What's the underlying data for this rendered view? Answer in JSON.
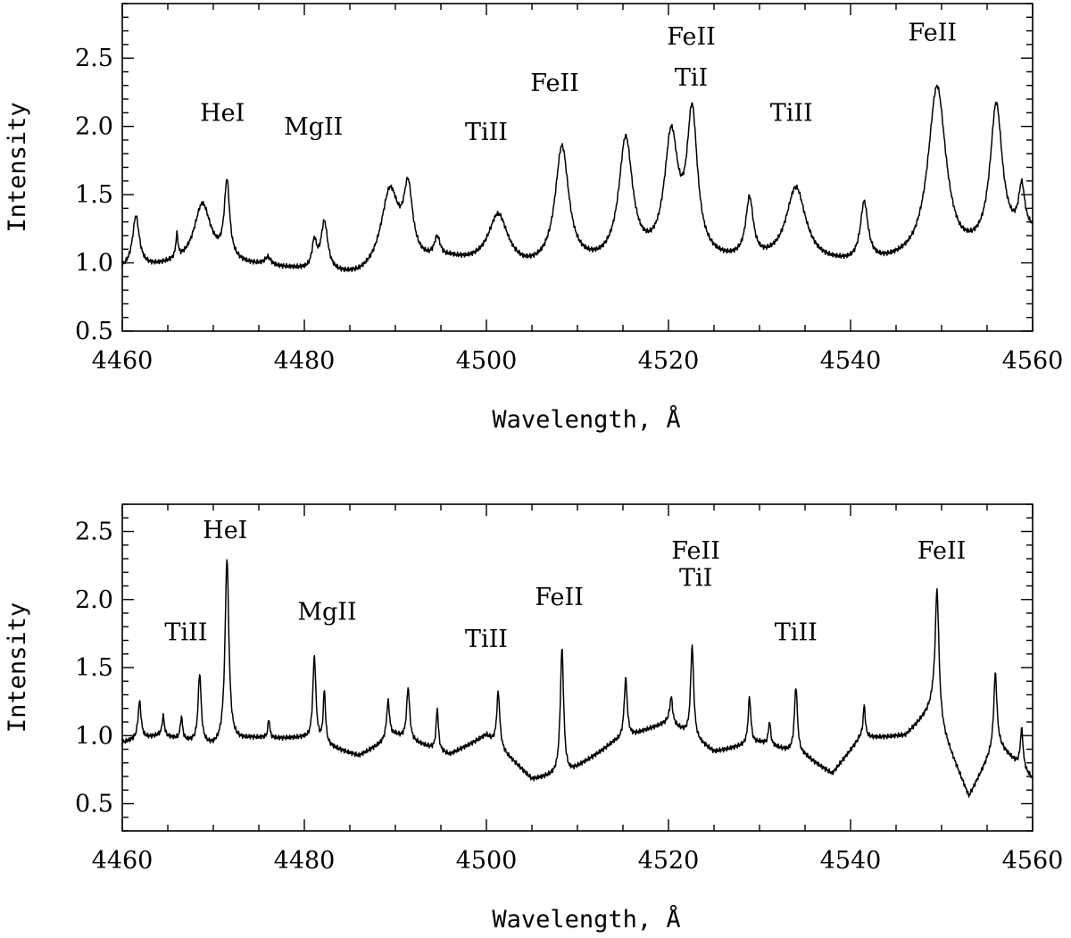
{
  "chart_data": [
    {
      "type": "line",
      "xlabel": "Wavelength, Å",
      "ylabel": "Intensity",
      "xlim": [
        4460,
        4560
      ],
      "ylim": [
        0.5,
        2.9
      ],
      "xticks": [
        4460,
        4480,
        4500,
        4520,
        4540,
        4560
      ],
      "xtick_labels": [
        "4460",
        "4480",
        "4500",
        "4520",
        "4540",
        "4560"
      ],
      "yticks": [
        0.5,
        1.0,
        1.5,
        2.0,
        2.5
      ],
      "ytick_labels": [
        "0.5",
        "1.0",
        "1.5",
        "2.0",
        "2.5"
      ],
      "grid": false,
      "continuum": [
        [
          4460,
          0.95
        ],
        [
          4470,
          1.0
        ],
        [
          4478,
          0.95
        ],
        [
          4486,
          0.88
        ],
        [
          4496,
          1.0
        ],
        [
          4504,
          0.93
        ],
        [
          4520,
          1.0
        ],
        [
          4540,
          0.97
        ],
        [
          4552,
          1.0
        ],
        [
          4560,
          1.2
        ]
      ],
      "lines": [
        {
          "x": 4461.5,
          "peak": 1.33,
          "width": 0.45
        },
        {
          "x": 4466.0,
          "peak": 1.15,
          "width": 0.15
        },
        {
          "x": 4468.8,
          "peak": 1.42,
          "width": 1.1
        },
        {
          "x": 4471.5,
          "peak": 1.55,
          "width": 0.35
        },
        {
          "x": 4476.0,
          "peak": 1.02,
          "width": 0.4
        },
        {
          "x": 4481.1,
          "peak": 1.12,
          "width": 0.3
        },
        {
          "x": 4482.2,
          "peak": 1.27,
          "width": 0.45
        },
        {
          "x": 4489.4,
          "peak": 1.5,
          "width": 1.2
        },
        {
          "x": 4491.4,
          "peak": 1.45,
          "width": 0.6
        },
        {
          "x": 4494.6,
          "peak": 1.13,
          "width": 0.4
        },
        {
          "x": 4501.3,
          "peak": 1.33,
          "width": 1.3
        },
        {
          "x": 4508.3,
          "peak": 1.82,
          "width": 0.9
        },
        {
          "x": 4515.3,
          "peak": 1.87,
          "width": 0.9
        },
        {
          "x": 4520.3,
          "peak": 1.87,
          "width": 0.9
        },
        {
          "x": 4522.6,
          "peak": 2.02,
          "width": 0.7
        },
        {
          "x": 4528.9,
          "peak": 1.42,
          "width": 0.5
        },
        {
          "x": 4534.0,
          "peak": 1.53,
          "width": 1.3
        },
        {
          "x": 4541.5,
          "peak": 1.4,
          "width": 0.5
        },
        {
          "x": 4549.5,
          "peak": 2.27,
          "width": 1.2
        },
        {
          "x": 4556.0,
          "peak": 2.12,
          "width": 0.8
        },
        {
          "x": 4558.8,
          "peak": 1.5,
          "width": 0.4
        }
      ],
      "absorptions": [],
      "annotations": [
        {
          "text": "HeI",
          "x": 4471.0,
          "y": 2.04
        },
        {
          "text": "MgII",
          "x": 4481.0,
          "y": 1.94
        },
        {
          "text": "TiII",
          "x": 4500.0,
          "y": 1.9
        },
        {
          "text": "FeII",
          "x": 4507.5,
          "y": 2.26
        },
        {
          "text": "FeII",
          "x": 4522.5,
          "y": 2.6
        },
        {
          "text": "TiI",
          "x": 4522.5,
          "y": 2.3
        },
        {
          "text": "TiII",
          "x": 4533.5,
          "y": 2.04
        },
        {
          "text": "FeII",
          "x": 4549.0,
          "y": 2.63
        }
      ]
    },
    {
      "type": "line",
      "xlabel": "Wavelength, Å",
      "ylabel": "Intensity",
      "xlim": [
        4460,
        4560
      ],
      "ylim": [
        0.3,
        2.7
      ],
      "xticks": [
        4460,
        4480,
        4500,
        4520,
        4540,
        4560
      ],
      "xtick_labels": [
        "4460",
        "4480",
        "4500",
        "4520",
        "4540",
        "4560"
      ],
      "yticks": [
        0.5,
        1.0,
        1.5,
        2.0,
        2.5
      ],
      "ytick_labels": [
        "0.5",
        "1.0",
        "1.5",
        "2.0",
        "2.5"
      ],
      "grid": false,
      "continuum": [
        [
          4460,
          0.95
        ],
        [
          4464,
          1.0
        ],
        [
          4470,
          0.92
        ],
        [
          4474,
          0.98
        ],
        [
          4480,
          0.98
        ],
        [
          4486,
          0.85
        ],
        [
          4490,
          1.0
        ],
        [
          4496,
          0.86
        ],
        [
          4500,
          1.0
        ],
        [
          4505,
          0.68
        ],
        [
          4509,
          0.72
        ],
        [
          4514,
          0.95
        ],
        [
          4520,
          1.1
        ],
        [
          4525,
          0.88
        ],
        [
          4530,
          0.95
        ],
        [
          4535,
          0.85
        ],
        [
          4538,
          0.72
        ],
        [
          4541,
          0.98
        ],
        [
          4546,
          1.0
        ],
        [
          4549,
          1.2
        ],
        [
          4553,
          0.55
        ],
        [
          4556,
          0.95
        ],
        [
          4560,
          0.68
        ]
      ],
      "lines": [
        {
          "x": 4461.9,
          "peak": 1.25,
          "width": 0.2
        },
        {
          "x": 4464.5,
          "peak": 1.14,
          "width": 0.15
        },
        {
          "x": 4466.5,
          "peak": 1.13,
          "width": 0.15
        },
        {
          "x": 4468.5,
          "peak": 1.45,
          "width": 0.2
        },
        {
          "x": 4471.5,
          "peak": 2.3,
          "width": 0.25
        },
        {
          "x": 4476.1,
          "peak": 1.12,
          "width": 0.12
        },
        {
          "x": 4481.1,
          "peak": 1.58,
          "width": 0.2
        },
        {
          "x": 4482.2,
          "peak": 1.32,
          "width": 0.15
        },
        {
          "x": 4489.2,
          "peak": 1.25,
          "width": 0.2
        },
        {
          "x": 4491.4,
          "peak": 1.35,
          "width": 0.2
        },
        {
          "x": 4494.6,
          "peak": 1.2,
          "width": 0.15
        },
        {
          "x": 4501.3,
          "peak": 1.32,
          "width": 0.2
        },
        {
          "x": 4508.3,
          "peak": 1.64,
          "width": 0.22
        },
        {
          "x": 4515.3,
          "peak": 1.42,
          "width": 0.2
        },
        {
          "x": 4520.3,
          "peak": 1.28,
          "width": 0.18
        },
        {
          "x": 4522.6,
          "peak": 1.66,
          "width": 0.2
        },
        {
          "x": 4528.9,
          "peak": 1.28,
          "width": 0.18
        },
        {
          "x": 4531.1,
          "peak": 1.1,
          "width": 0.15
        },
        {
          "x": 4534.0,
          "peak": 1.36,
          "width": 0.2
        },
        {
          "x": 4541.5,
          "peak": 1.22,
          "width": 0.15
        },
        {
          "x": 4549.5,
          "peak": 2.07,
          "width": 0.25
        },
        {
          "x": 4555.9,
          "peak": 1.46,
          "width": 0.2
        },
        {
          "x": 4558.8,
          "peak": 1.05,
          "width": 0.18
        }
      ],
      "absorptions": [],
      "annotations": [
        {
          "text": "TiII",
          "x": 4467.0,
          "y": 1.7
        },
        {
          "text": "HeI",
          "x": 4471.3,
          "y": 2.45
        },
        {
          "text": "MgII",
          "x": 4482.5,
          "y": 1.85
        },
        {
          "text": "TiII",
          "x": 4500.0,
          "y": 1.65
        },
        {
          "text": "FeII",
          "x": 4508.0,
          "y": 1.96
        },
        {
          "text": "FeII",
          "x": 4523.0,
          "y": 2.3
        },
        {
          "text": "TiI",
          "x": 4523.0,
          "y": 2.1
        },
        {
          "text": "TiII",
          "x": 4534.0,
          "y": 1.7
        },
        {
          "text": "FeII",
          "x": 4550.0,
          "y": 2.3
        }
      ]
    }
  ]
}
